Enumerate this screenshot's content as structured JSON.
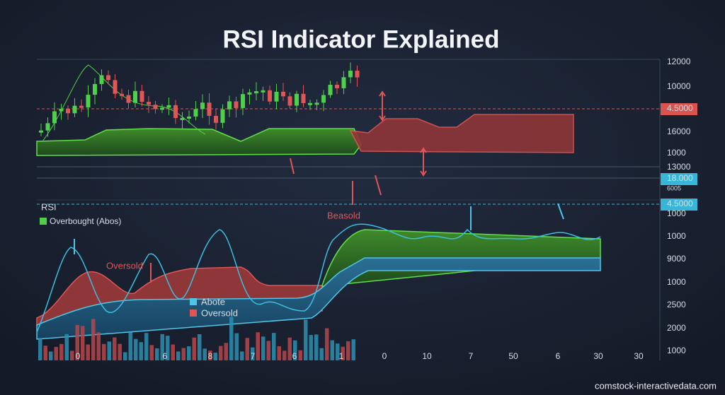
{
  "title": "RSI Indicator Explained",
  "right_axis_upper": [
    "12000",
    "10000",
    "4.5000",
    "16000",
    "1000",
    "13000",
    "18.000",
    "6005"
  ],
  "right_axis_lower": [
    "4.5000",
    "1000",
    "1000",
    "9000",
    "1000",
    "2500",
    "2000",
    "1000"
  ],
  "panel_label": "RSI",
  "legend_top": "Overbought (Abos)",
  "annotations": {
    "beasold": "Beasold",
    "oversold": "Oversold"
  },
  "legend_bottom": [
    "Abote",
    "Oversold"
  ],
  "bottom_axis": [
    "0",
    "6",
    "8",
    "7",
    "6",
    "1",
    "0",
    "10",
    "7",
    "50",
    "6",
    "30",
    "30"
  ],
  "watermark": "comstock-interactivedata.com"
}
